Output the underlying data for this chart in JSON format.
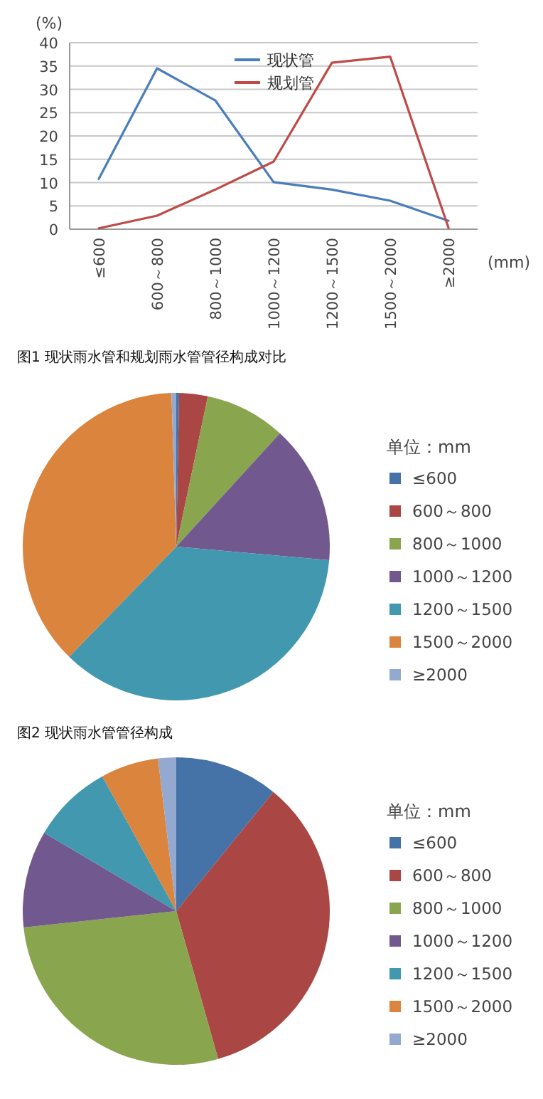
{
  "chart_data": [
    {
      "type": "line",
      "ylabel": "(%)",
      "xlabel": "(mm)",
      "categories": [
        "≤600",
        "600～800",
        "800～1000",
        "1000～1200",
        "1200～1500",
        "1500～2000",
        "≥2000"
      ],
      "series": [
        {
          "name": "现状管",
          "color": "#4a7ebb",
          "values": [
            10.8,
            34.5,
            27.6,
            10.1,
            8.5,
            6.1,
            1.8
          ]
        },
        {
          "name": "规划管",
          "color": "#be4b48",
          "values": [
            0.2,
            2.9,
            8.5,
            14.5,
            35.7,
            37.0,
            0.3
          ]
        }
      ],
      "ylim": [
        0,
        40
      ],
      "yticks": [
        0,
        5,
        10,
        15,
        20,
        25,
        30,
        35,
        40
      ],
      "grid": "y",
      "legend": "top",
      "marker": "none",
      "line_style": "solid",
      "annotations": [
        "图1  现状雨水管和规划雨水管管径构成对比"
      ]
    },
    {
      "type": "pie",
      "legend_title": "单位：mm",
      "legend": "right",
      "categories": [
        "≤600",
        "600～800",
        "800～1000",
        "1000～1200",
        "1200～1500",
        "1500～2000",
        "≥2000"
      ],
      "values": [
        0.3,
        3.0,
        8.5,
        14.6,
        35.9,
        37.2,
        0.5
      ],
      "colors": [
        "#4572a7",
        "#aa4643",
        "#89a54e",
        "#71588f",
        "#4198af",
        "#db843d",
        "#93a9cf"
      ],
      "annotations": [
        "图2  现状雨水管管径构成"
      ]
    },
    {
      "type": "pie",
      "legend_title": "单位：mm",
      "legend": "right",
      "categories": [
        "≤600",
        "600～800",
        "800～1000",
        "1000～1200",
        "1200～1500",
        "1500～2000",
        "≥2000"
      ],
      "values": [
        10.9,
        34.7,
        27.7,
        10.2,
        8.5,
        6.1,
        1.9
      ],
      "colors": [
        "#4572a7",
        "#aa4643",
        "#89a54e",
        "#71588f",
        "#4198af",
        "#db843d",
        "#93a9cf"
      ]
    }
  ]
}
